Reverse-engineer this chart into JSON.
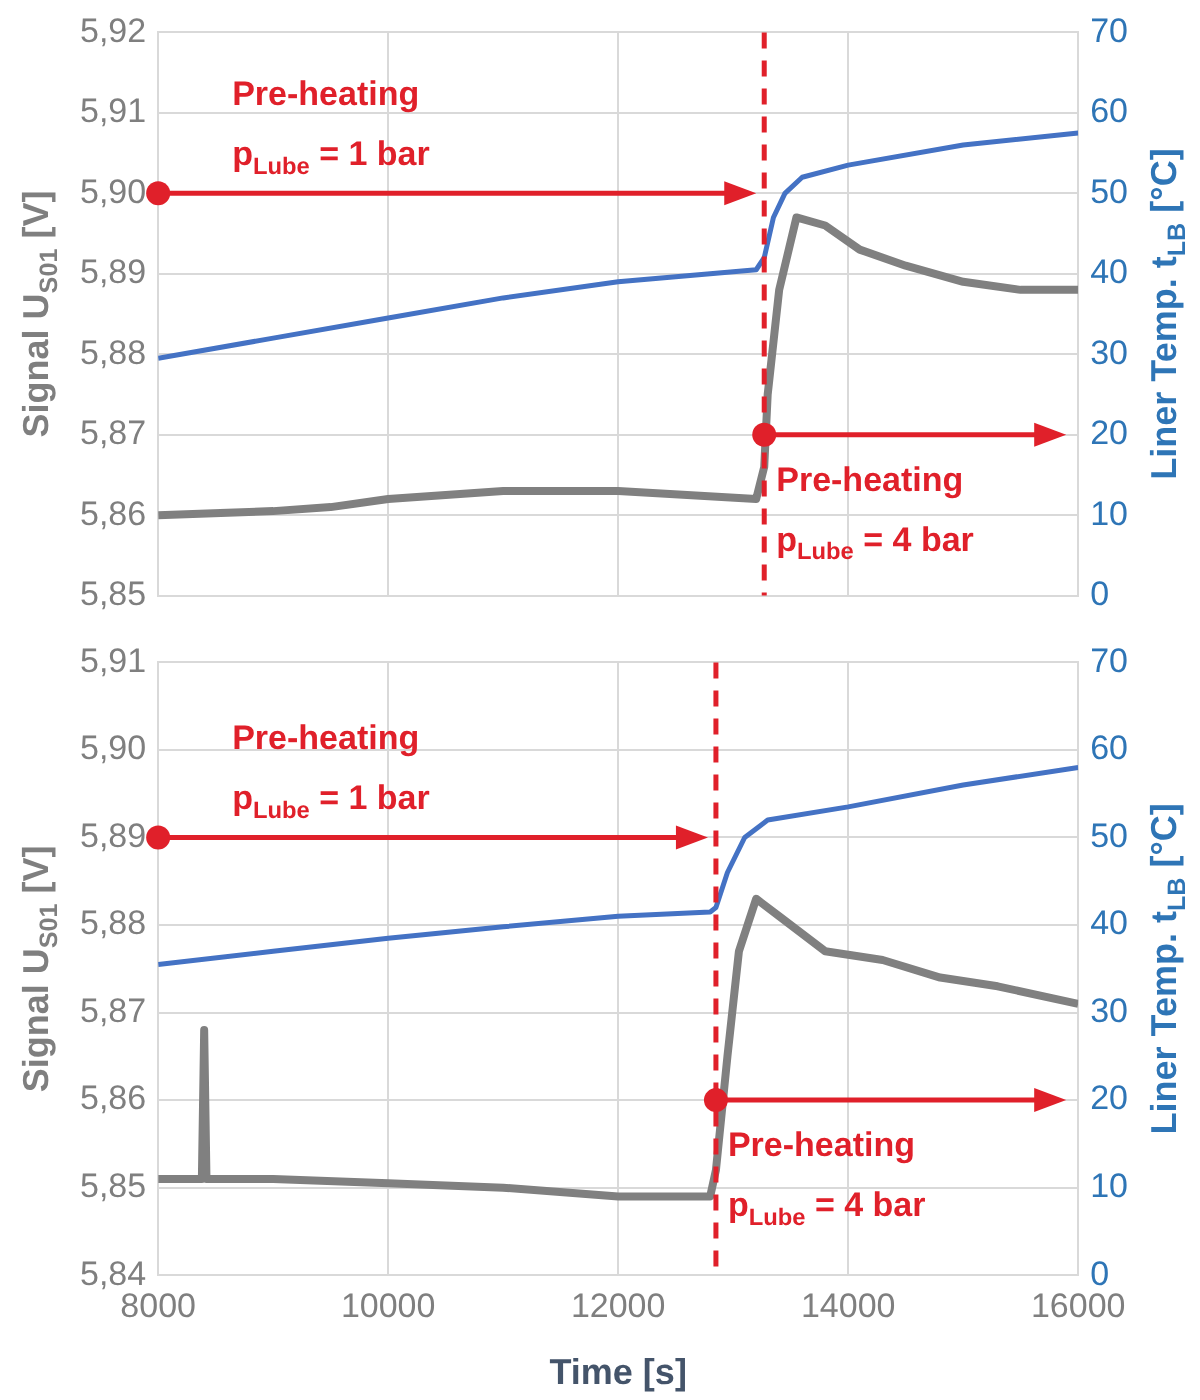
{
  "chart_data": [
    {
      "type": "line",
      "ylabel": "Signal U$_{S01}$ [V]",
      "y2label": "Liner Temp. t$_{LB}$ [°C]",
      "x": [
        8000,
        9000,
        9500,
        10000,
        11000,
        12000,
        13200,
        13270,
        13300,
        13400,
        13550,
        13800,
        14100,
        14500,
        15000,
        15500,
        16000
      ],
      "series": [
        {
          "color": "#808080",
          "values": [
            5.86,
            5.8605,
            5.861,
            5.862,
            5.863,
            5.863,
            5.862,
            5.866,
            5.875,
            5.888,
            5.897,
            5.896,
            5.893,
            5.891,
            5.889,
            5.888,
            5.888
          ]
        },
        {
          "color": "#4472c4",
          "axis": "y2",
          "x": [
            8000,
            9000,
            10000,
            11000,
            12000,
            13200,
            13270,
            13350,
            13450,
            13600,
            14000,
            15000,
            16000
          ],
          "values": [
            29.5,
            32,
            34.5,
            37,
            39,
            40.5,
            42,
            47,
            50,
            52,
            53.5,
            56,
            57.5
          ]
        }
      ],
      "xlim": [
        8000,
        16000
      ],
      "xticks": [
        8000,
        10000,
        12000,
        14000,
        16000
      ],
      "ylim": [
        5.85,
        5.92
      ],
      "yticks": [
        {
          "value": 5.85,
          "label": "5,85"
        },
        {
          "value": 5.86,
          "label": "5,86"
        },
        {
          "value": 5.87,
          "label": "5,87"
        },
        {
          "value": 5.88,
          "label": "5,88"
        },
        {
          "value": 5.89,
          "label": "5,89"
        },
        {
          "value": 5.9,
          "label": "5,90"
        },
        {
          "value": 5.91,
          "label": "5,91"
        },
        {
          "value": 5.92,
          "label": "5,92"
        }
      ],
      "y2lim": [
        0,
        70
      ],
      "y2ticks": [
        0,
        10,
        20,
        30,
        40,
        50,
        60,
        70
      ],
      "ref_lines": [
        {
          "axis": "x",
          "value": 13270,
          "color": "#e0202a",
          "line_style": "dashed"
        }
      ],
      "annotations": [
        {
          "text": "Pre-heating\np$_{Lube}$ = 1 bar",
          "x": 8000,
          "y": 5.9
        },
        {
          "text": "Pre-heating\np$_{Lube}$ = 4 bar",
          "x": 13270,
          "y": 5.87
        }
      ],
      "grid": true,
      "marker": "none",
      "line_style": "solid",
      "legend": false,
      "tick_labels": "y"
    },
    {
      "type": "line",
      "xlabel": "Time [s]",
      "ylabel": "Signal U$_{S01}$ [V]",
      "y2label": "Liner Temp. t$_{LB}$ [°C]",
      "x": [
        8000,
        8380,
        8400,
        8420,
        9000,
        10000,
        11000,
        12000,
        12800,
        12850,
        12950,
        13050,
        13200,
        13400,
        13800,
        14300,
        14800,
        15300,
        16000
      ],
      "series": [
        {
          "color": "#808080",
          "values": [
            5.851,
            5.851,
            5.868,
            5.851,
            5.851,
            5.8505,
            5.85,
            5.849,
            5.849,
            5.852,
            5.865,
            5.877,
            5.883,
            5.881,
            5.877,
            5.876,
            5.874,
            5.873,
            5.871
          ]
        },
        {
          "color": "#4472c4",
          "axis": "y2",
          "x": [
            8000,
            9000,
            10000,
            11000,
            12000,
            12800,
            12850,
            12950,
            13100,
            13300,
            14000,
            15000,
            16000
          ],
          "values": [
            35.5,
            37,
            38.5,
            39.8,
            41,
            41.5,
            42,
            46,
            50,
            52,
            53.5,
            56,
            58
          ]
        }
      ],
      "xlim": [
        8000,
        16000
      ],
      "xticks": [
        8000,
        10000,
        12000,
        14000,
        16000
      ],
      "ylim": [
        5.84,
        5.91
      ],
      "yticks": [
        {
          "value": 5.84,
          "label": "5,84"
        },
        {
          "value": 5.85,
          "label": "5,85"
        },
        {
          "value": 5.86,
          "label": "5,86"
        },
        {
          "value": 5.87,
          "label": "5,87"
        },
        {
          "value": 5.88,
          "label": "5,88"
        },
        {
          "value": 5.89,
          "label": "5,89"
        },
        {
          "value": 5.9,
          "label": "5,90"
        },
        {
          "value": 5.91,
          "label": "5,91"
        }
      ],
      "y2lim": [
        0,
        70
      ],
      "y2ticks": [
        0,
        10,
        20,
        30,
        40,
        50,
        60,
        70
      ],
      "ref_lines": [
        {
          "axis": "x",
          "value": 12850,
          "color": "#e0202a",
          "line_style": "dashed"
        }
      ],
      "annotations": [
        {
          "text": "Pre-heating\np$_{Lube}$ = 1 bar",
          "x": 8000,
          "y": 5.89
        },
        {
          "text": "Pre-heating\np$_{Lube}$ = 4 bar",
          "x": 12850,
          "y": 5.86
        }
      ],
      "grid": true,
      "marker": "none",
      "line_style": "solid",
      "legend": false
    }
  ]
}
